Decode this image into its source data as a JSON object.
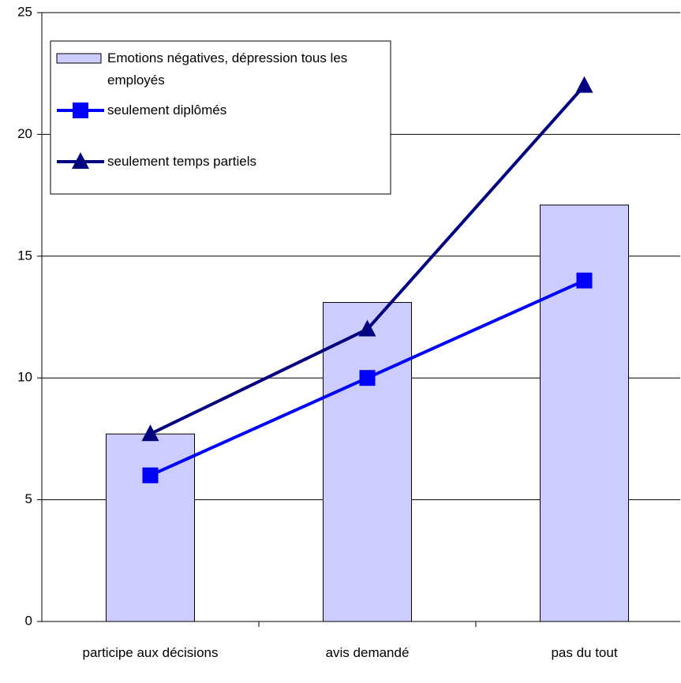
{
  "chart_data": {
    "type": "bar_line",
    "categories": [
      "participe aux décisions",
      "avis demandé",
      "pas du tout"
    ],
    "series": [
      {
        "name": "Emotions négatives, dépression tous les employés",
        "type": "bar",
        "color": "#ccccff",
        "values": [
          7.7,
          13.1,
          17.1
        ]
      },
      {
        "name": "seulement diplômés",
        "type": "line",
        "marker": "square",
        "color": "#0000ff",
        "values": [
          6,
          10,
          14
        ]
      },
      {
        "name": "seulement temps partiels",
        "type": "line",
        "marker": "triangle",
        "color": "#000080",
        "values": [
          7.7,
          12,
          22
        ]
      }
    ],
    "ylim": [
      0,
      25
    ],
    "yticks": [
      0,
      5,
      10,
      15,
      20,
      25
    ],
    "grid": true
  }
}
